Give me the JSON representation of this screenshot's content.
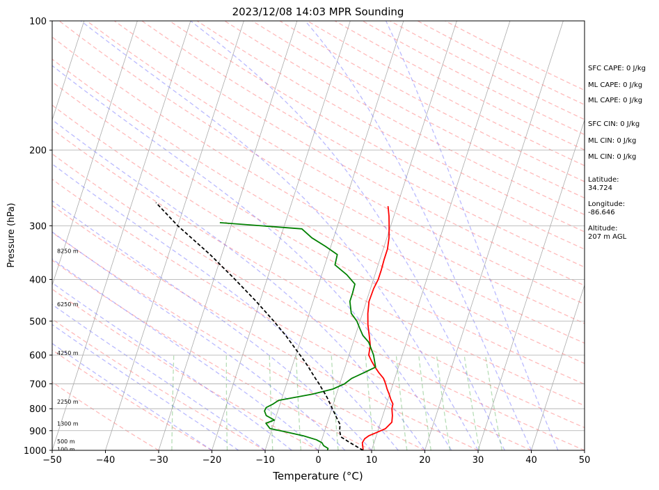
{
  "title": "2023/12/08 14:03 MPR Sounding",
  "xlabel": "Temperature (°C)",
  "ylabel": "Pressure (hPa)",
  "chart_data": {
    "type": "line",
    "title": "2023/12/08 14:03 MPR Sounding",
    "xlabel": "Temperature (°C)",
    "ylabel": "Pressure (hPa)",
    "xlim": [
      -50,
      50
    ],
    "ylim": [
      1000,
      100
    ],
    "y_scale": "log",
    "skew": "skew-T log-p",
    "grid": true,
    "x_ticks": [
      -50,
      -40,
      -30,
      -20,
      -10,
      0,
      10,
      20,
      30,
      40,
      50
    ],
    "y_ticks": [
      1000,
      900,
      800,
      700,
      600,
      500,
      400,
      300,
      200,
      100
    ],
    "series": [
      {
        "kind": "temperature",
        "color": "#ff0000",
        "pressure_hpa": [
          1000,
          985,
          960,
          940,
          925,
          910,
          890,
          860,
          830,
          800,
          780,
          760,
          740,
          720,
          700,
          680,
          660,
          640,
          620,
          600,
          570,
          540,
          510,
          480,
          450,
          420,
          400,
          380,
          360,
          340,
          320,
          300,
          285,
          270
        ],
        "temp_c": [
          8.4,
          8.2,
          7.8,
          8.0,
          8.6,
          9.8,
          11.3,
          12.1,
          11.8,
          11.3,
          11.2,
          10.5,
          9.9,
          9.2,
          8.6,
          7.9,
          6.7,
          5.6,
          4.6,
          3.7,
          3.4,
          2.6,
          1.7,
          1.0,
          0.5,
          0.6,
          0.9,
          0.9,
          0.8,
          0.8,
          0.4,
          -0.3,
          -0.9,
          -1.7
        ]
      },
      {
        "kind": "dewpoint",
        "color": "#008000",
        "pressure_hpa": [
          1000,
          990,
          975,
          960,
          945,
          925,
          905,
          890,
          865,
          850,
          830,
          810,
          795,
          780,
          765,
          740,
          720,
          700,
          680,
          660,
          640,
          600,
          560,
          540,
          520,
          500,
          480,
          450,
          430,
          410,
          390,
          370,
          350,
          335,
          320,
          305,
          295
        ],
        "temp_c": [
          1.7,
          1.7,
          0.7,
          0.2,
          -1.0,
          -3.7,
          -7.4,
          -10.4,
          -11.5,
          -10.1,
          -11.9,
          -12.5,
          -12.4,
          -11.3,
          -10.5,
          -4.5,
          -1.0,
          0.9,
          1.9,
          3.8,
          5.7,
          4.6,
          2.9,
          1.4,
          0.4,
          -0.6,
          -2.1,
          -3.1,
          -3.1,
          -3.2,
          -5.3,
          -8.1,
          -8.3,
          -11.0,
          -14.1,
          -16.5,
          -32.3
        ]
      },
      {
        "kind": "parcel",
        "color": "#000000",
        "style": "dashed",
        "pressure_hpa": [
          1000,
          960,
          930,
          900,
          870,
          850,
          820,
          800,
          780,
          760,
          740,
          720,
          700,
          680,
          660,
          640,
          620,
          600,
          570,
          540,
          500,
          450,
          400,
          350,
          300,
          265
        ],
        "temp_c": [
          8.4,
          5.5,
          3.4,
          2.8,
          2.5,
          1.8,
          0.8,
          0.1,
          -0.6,
          -1.3,
          -2.1,
          -3.0,
          -3.9,
          -4.9,
          -5.9,
          -6.9,
          -8.0,
          -9.2,
          -11.1,
          -13.1,
          -16.2,
          -20.7,
          -26.0,
          -32.2,
          -40.0,
          -45.5
        ]
      }
    ],
    "height_labels": [
      {
        "pressure_hpa": 343,
        "text": "8250 m"
      },
      {
        "pressure_hpa": 457,
        "text": "6250 m"
      },
      {
        "pressure_hpa": 593,
        "text": "4250 m"
      },
      {
        "pressure_hpa": 770,
        "text": "2250 m"
      },
      {
        "pressure_hpa": 866,
        "text": "1300 m"
      },
      {
        "pressure_hpa": 953,
        "text": "500 m"
      },
      {
        "pressure_hpa": 994,
        "text": "100 m"
      }
    ]
  },
  "side_info": [
    {
      "text": "SFC CAPE: 0 J/kg"
    },
    {
      "text": "ML CAPE: 0 J/kg"
    },
    {
      "text": "ML CAPE: 0 J/kg"
    },
    {
      "text": "SFC CIN: 0 J/kg"
    },
    {
      "text": "ML CIN: 0 J/kg"
    },
    {
      "text": "ML CIN: 0 J/kg"
    },
    {
      "text": "Latitude:\n34.724"
    },
    {
      "text": "Longitude:\n-86.646"
    },
    {
      "text": "Altitude:\n207 m AGL"
    }
  ],
  "colors": {
    "temperature": "#ff0000",
    "dewpoint": "#008000",
    "parcel": "#000000",
    "dry_adiabat": "#ff6666",
    "moist_adiabat": "#6666ff",
    "mixing_ratio": "#2e9e2e",
    "isotherm_grid": "#aaaaaa"
  }
}
